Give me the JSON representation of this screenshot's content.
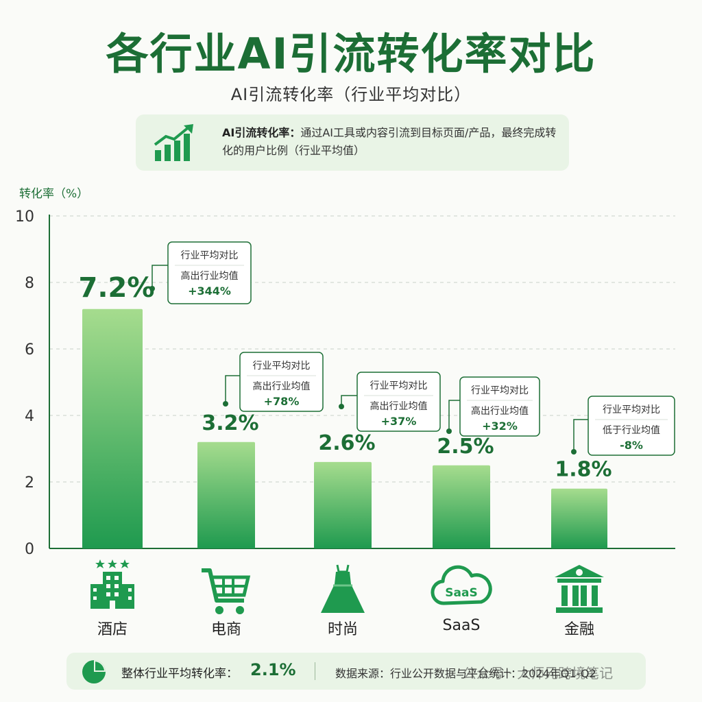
{
  "header": {
    "title": "各行业AI引流转化率对比",
    "subtitle": "AI引流转化率（行业平均对比）"
  },
  "definition": {
    "term": "AI引流转化率：",
    "text": "通过AI工具或内容引流到目标页面/产品，最终完成转化的用户比例（行业平均值）",
    "icon": "growth-chart-icon"
  },
  "chart_data": {
    "type": "bar",
    "ylabel": "转化率（%）",
    "xlabel": "",
    "ylim": [
      0,
      10
    ],
    "yticks": [
      0,
      2,
      4,
      6,
      8,
      10
    ],
    "grid": true,
    "categories": [
      "酒店",
      "电商",
      "时尚",
      "SaaS",
      "金融"
    ],
    "values": [
      7.2,
      3.2,
      2.6,
      2.5,
      1.8
    ],
    "value_labels": [
      "7.2%",
      "3.2%",
      "2.6%",
      "2.5%",
      "1.8%"
    ],
    "annotations": [
      {
        "heading": "行业平均对比",
        "line": "高出行业均值",
        "delta": "+344%"
      },
      {
        "heading": "行业平均对比",
        "line": "高出行业均值",
        "delta": "+78%"
      },
      {
        "heading": "行业平均对比",
        "line": "高出行业均值",
        "delta": "+37%"
      },
      {
        "heading": "行业平均对比",
        "line": "高出行业均值",
        "delta": "+32%"
      },
      {
        "heading": "行业平均对比",
        "line": "低于行业均值",
        "delta": "-8%"
      }
    ],
    "category_icons": [
      "hotel-icon",
      "shopping-cart-icon",
      "dress-icon",
      "saas-cloud-icon",
      "bank-icon"
    ],
    "colors": {
      "bar_top": "#a6dc8e",
      "bar_bottom": "#1f9a4f",
      "accent": "#1c6e35"
    }
  },
  "footer": {
    "avg_label": "整体行业平均转化率：",
    "avg_value": "2.1%",
    "source": "数据来源：行业公开数据与平台统计：2024年Q1-Q2",
    "watermark": "公众号 · 大师兄跨境笔记"
  }
}
